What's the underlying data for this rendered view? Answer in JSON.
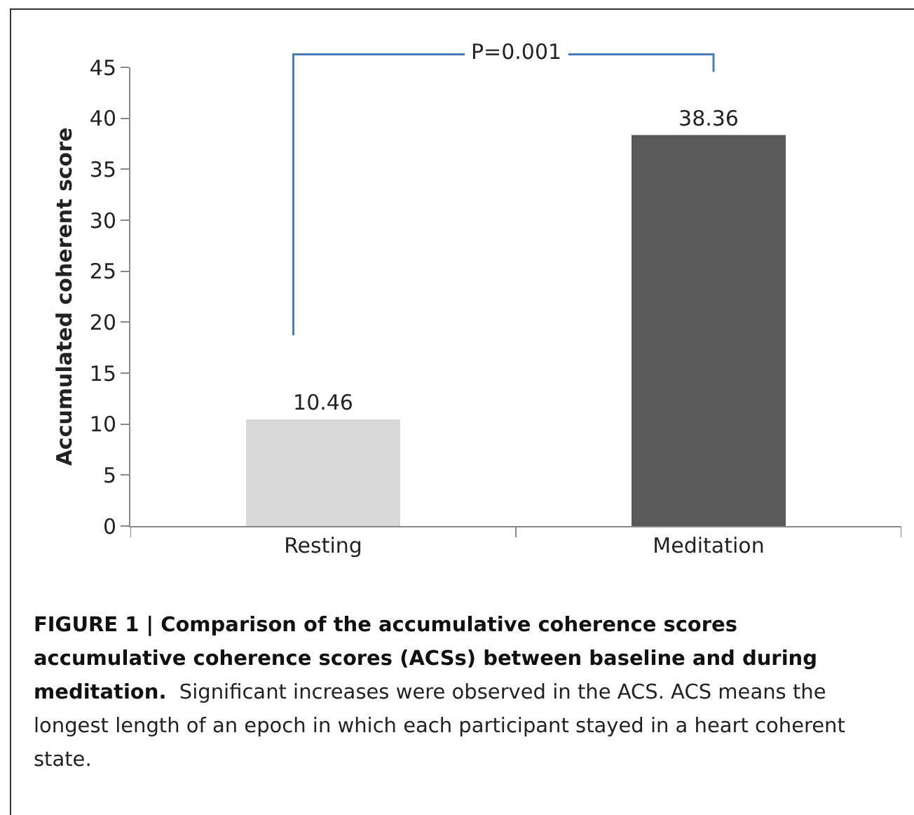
{
  "chart_data": {
    "type": "bar",
    "title": "FIGURE 1 | Comparison of the accumulative coherence scores accumulative coherence scores (ACSs) between baseline and during meditation.",
    "ylabel": "Accumulated coherent score",
    "categories": [
      "Resting",
      "Meditation"
    ],
    "values": [
      10.46,
      38.36
    ],
    "colors": [
      "#d9d9d9",
      "#595959"
    ],
    "data_labels": true,
    "ylim": [
      0,
      45
    ],
    "yticks": [
      0,
      5,
      10,
      15,
      20,
      25,
      30,
      35,
      40,
      45
    ],
    "grid": false,
    "legend": false,
    "annotations": [
      "P=0.001",
      "Significant increases were observed in the ACS. ACS means the longest length of an epoch in which each participant stayed in a heart coherent state."
    ]
  }
}
